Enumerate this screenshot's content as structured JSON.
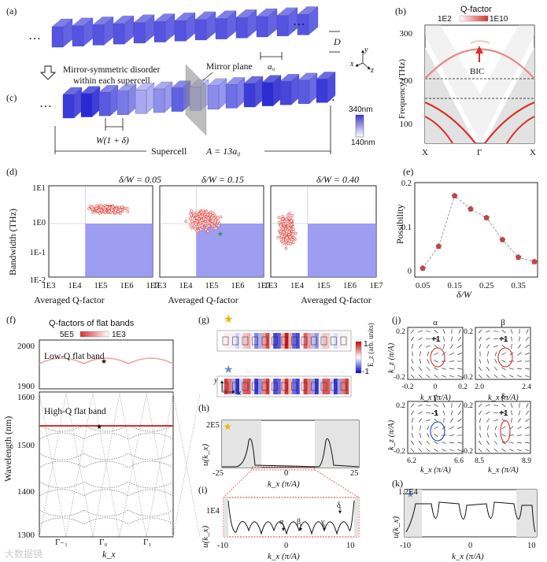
{
  "panel_labels": {
    "a": "(a)",
    "b": "(b)",
    "c": "(c)",
    "d": "(d)",
    "e": "(e)",
    "f": "(f)",
    "g": "(g)",
    "h": "(h)",
    "i": "(i)",
    "j": "(j)",
    "k": "(k)"
  },
  "a": {
    "ellipsis_left": "…",
    "ellipsis_right": "…",
    "D": "D",
    "a0": "a₀",
    "axes_x": "x",
    "axes_y": "y",
    "axes_z": "z"
  },
  "arrow_note": "Mirror-symmetric disorder\nwithin each supercell",
  "mirror_plane": "Mirror plane",
  "c": {
    "width_label": "W(1 + δ)",
    "supercell_label": "Supercell",
    "supercell_eq": "A = 13a₀",
    "scale_top": "340nm",
    "scale_bottom": "140nm"
  },
  "b": {
    "title": "Q-factor",
    "scale_min": "1E2",
    "scale_max": "1E10",
    "ylabel": "Frequency (THz)",
    "yticks": [
      "100",
      "200",
      "300"
    ],
    "xticks": [
      "X",
      "Γ",
      "X"
    ],
    "bic": "BIC"
  },
  "d": {
    "titles": [
      "δ/W = 0.05",
      "δ/W = 0.15",
      "δ/W = 0.40"
    ],
    "ylabel": "Bandwidth (THz)",
    "yticks": [
      "1E1",
      "1E0",
      "1E-1",
      "1E-2"
    ],
    "xticks": [
      "1E3",
      "1E4",
      "1E5",
      "1E6",
      "1E7"
    ],
    "xlabel": "Averaged Q-factor"
  },
  "e": {
    "ylabel": "Possibility",
    "xlabel": "δ/W",
    "yticks": [
      "0",
      "0.1",
      "0.2"
    ],
    "xticks": [
      "0.05",
      "0.15",
      "0.25",
      "0.35"
    ]
  },
  "f": {
    "title": "Q-factors of flat bands",
    "scale_left": "5E5",
    "scale_right": "1E3",
    "low_label": "Low-Q flat band",
    "high_label": "High-Q flat band",
    "ylabel": "Wavelength (nm)",
    "yticks_top": [
      "2000",
      "1900"
    ],
    "yticks_bottom": [
      "1600",
      "1500",
      "1400",
      "1300"
    ],
    "xticks": [
      "Γ₋₁",
      "Γ₀",
      "Γ₁"
    ],
    "xlabel": "k_x"
  },
  "g": {
    "cbar_label": "E_z (arb. units)",
    "cbar_max": "1",
    "cbar_min": "-1",
    "axis_x": "x",
    "axis_y": "y"
  },
  "h": {
    "ylabel": "u(k_x)",
    "ytick": "2E5",
    "xticks": [
      "-25",
      "0",
      "25"
    ],
    "xlabel": "k_x (π/A)"
  },
  "i": {
    "ylabel": "u(k_x)",
    "ytick": "1E4",
    "xticks": [
      "-10",
      "0",
      "10"
    ],
    "xlabel": "k_x (π/A)",
    "markers": [
      "α",
      "β",
      "γ",
      "δ"
    ]
  },
  "j": {
    "panels": [
      {
        "title": "α",
        "charge": "+1",
        "xticks": [
          "-0.2",
          "0",
          "0.2"
        ],
        "yticks": [
          "0.2",
          "-0.2"
        ]
      },
      {
        "title": "β",
        "charge": "+1",
        "xticks": [
          "2.0",
          "2.4"
        ],
        "yticks": [
          "0.2",
          "-0.2"
        ]
      },
      {
        "title": "γ",
        "charge": "-1",
        "xticks": [
          "6.2",
          "6.6"
        ],
        "yticks": [
          "0.2",
          "-0.2"
        ]
      },
      {
        "title": "δ",
        "charge": "+1",
        "xticks": [
          "8.5",
          "8.9"
        ],
        "yticks": [
          "0.2",
          "-0.2"
        ]
      }
    ],
    "ylabel": "k_z (π/A)",
    "xlabel": "k_x (π/A)"
  },
  "k": {
    "ylabel": "u(k_x)",
    "ytick": "1.2E4",
    "xticks": [
      "-10",
      "0",
      "10"
    ],
    "xlabel": "k_x (π/A)"
  },
  "watermark": "大数据镜",
  "colors": {
    "blue": "#4a4ad6",
    "red": "#d9302c",
    "shade": "#e4e4e4",
    "fill_blue": "#8c8cf0"
  },
  "chart_data": [
    {
      "panel": "e",
      "type": "line",
      "title": "",
      "xlabel": "δ/W",
      "ylabel": "Possibility",
      "x": [
        0.05,
        0.1,
        0.15,
        0.2,
        0.25,
        0.3,
        0.35,
        0.4
      ],
      "y": [
        0.005,
        0.055,
        0.17,
        0.14,
        0.12,
        0.07,
        0.03,
        0.02
      ],
      "xlim": [
        0.025,
        0.41
      ],
      "ylim": [
        -0.015,
        0.2
      ]
    }
  ]
}
